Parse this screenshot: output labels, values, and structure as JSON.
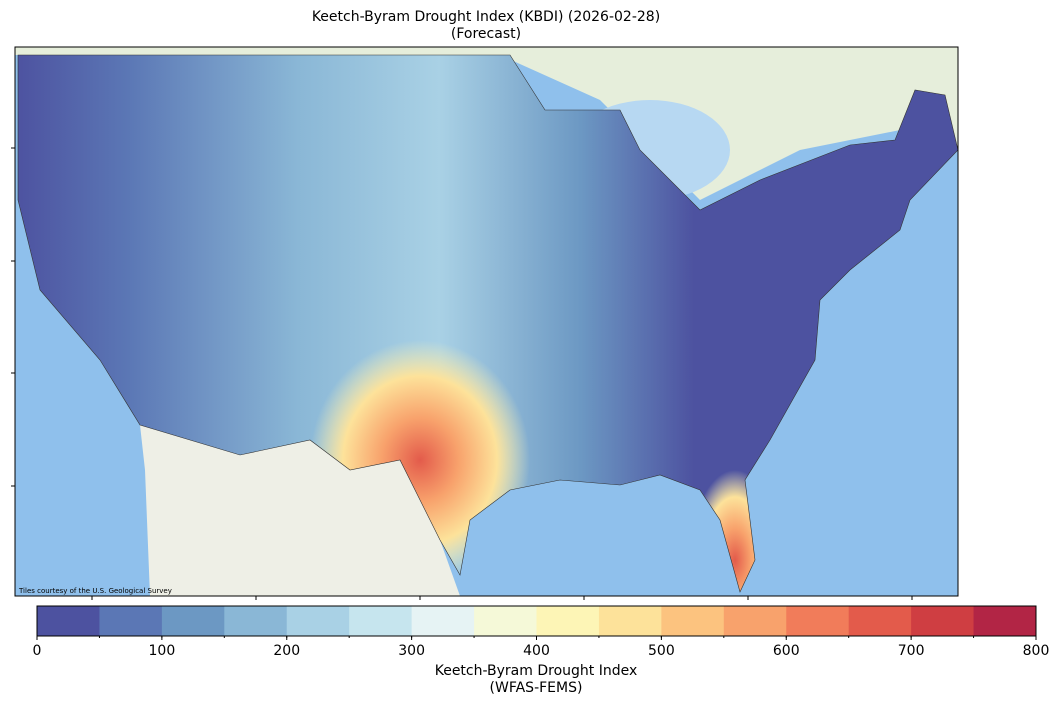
{
  "title": "Keetch-Byram Drought Index (KBDI) (2026-02-28)",
  "subtitle": "(Forecast)",
  "attribution": "Tiles courtesy of the U.S. Geological Survey",
  "colorbar": {
    "label": "Keetch-Byram Drought Index",
    "label_sub": "(WFAS-FEMS)",
    "bins": [
      0,
      50,
      100,
      150,
      200,
      250,
      300,
      350,
      400,
      450,
      500,
      550,
      600,
      650,
      700,
      750,
      800
    ],
    "colors": [
      "#4d52a0",
      "#5b77b5",
      "#6c98c3",
      "#8ab7d6",
      "#a9d1e5",
      "#c6e5ee",
      "#e6f3f4",
      "#f5f9d8",
      "#fdf5b6",
      "#fde29a",
      "#fcc37f",
      "#f8a26c",
      "#f17c5a",
      "#e35b4b",
      "#cf3e42",
      "#b22545"
    ],
    "ticks": [
      0,
      100,
      200,
      300,
      400,
      500,
      600,
      700,
      800
    ]
  }
}
